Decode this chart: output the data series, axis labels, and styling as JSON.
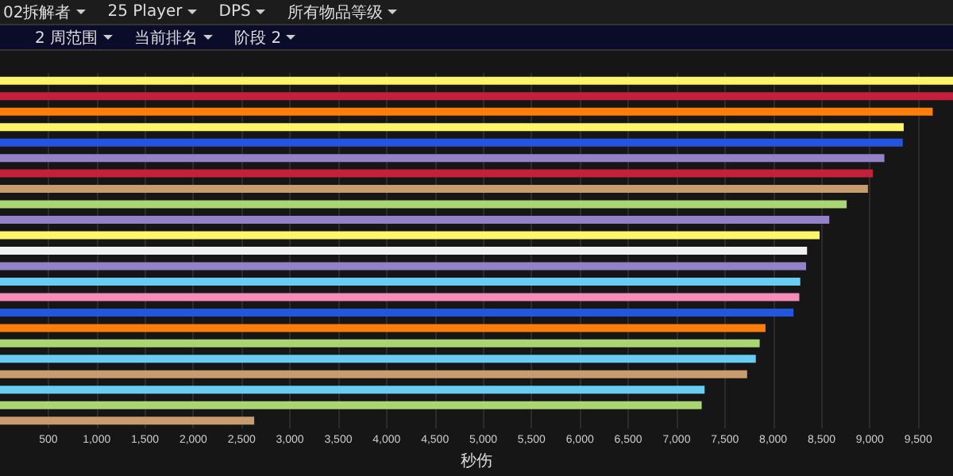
{
  "chart_data": {
    "type": "bar",
    "orientation": "horizontal",
    "xlabel": "秒伤",
    "annotations": [
      "02拆解者",
      "25 Player",
      "DPS",
      "所有物品等级",
      "2 周范围",
      "当前排名",
      "阶段 2"
    ],
    "categories": [
      null,
      null,
      null,
      null,
      null,
      null,
      null,
      null,
      null,
      null,
      null,
      null,
      null,
      null,
      null,
      null,
      null,
      null,
      null,
      null,
      null,
      null,
      null
    ],
    "values": [
      9860,
      9860,
      9650,
      9350,
      9340,
      9150,
      9030,
      8980,
      8760,
      8580,
      8480,
      8350,
      8340,
      8280,
      8270,
      8210,
      7920,
      7860,
      7820,
      7730,
      7290,
      7260,
      2630
    ],
    "colors": [
      "#fff569",
      "#c41f3b",
      "#ff7d0a",
      "#fff569",
      "#2455e0",
      "#9482c9",
      "#c41f3b",
      "#c79c6e",
      "#abd473",
      "#9482c9",
      "#fff569",
      "#f0f0f0",
      "#9482c9",
      "#69ccf0",
      "#f58cba",
      "#2455e0",
      "#ff7d0a",
      "#abd473",
      "#69ccf0",
      "#c79c6e",
      "#69ccf0",
      "#abd473",
      "#c79c6e"
    ],
    "xlim": [
      0,
      9860
    ],
    "xticks": [
      500,
      {
        "value": 1000,
        "label": "1,000"
      },
      {
        "value": 1500,
        "label": "1,500"
      },
      {
        "value": 2000,
        "label": "2,000"
      },
      {
        "value": 2500,
        "label": "2,500"
      },
      {
        "value": 3000,
        "label": "3,000"
      },
      {
        "value": 3500,
        "label": "3,500"
      },
      {
        "value": 4000,
        "label": "4,000"
      },
      {
        "value": 4500,
        "label": "4,500"
      },
      {
        "value": 5000,
        "label": "5,000"
      },
      {
        "value": 5500,
        "label": "5,500"
      },
      {
        "value": 6000,
        "label": "6,000"
      },
      {
        "value": 6500,
        "label": "6,500"
      },
      {
        "value": 7000,
        "label": "7,000"
      },
      {
        "value": 7500,
        "label": "7,500"
      },
      {
        "value": 8000,
        "label": "8,000"
      },
      {
        "value": 8500,
        "label": "8,500"
      },
      {
        "value": 9000,
        "label": "9,000"
      },
      {
        "value": 9500,
        "label": "9,500"
      }
    ],
    "grid": "x"
  }
}
